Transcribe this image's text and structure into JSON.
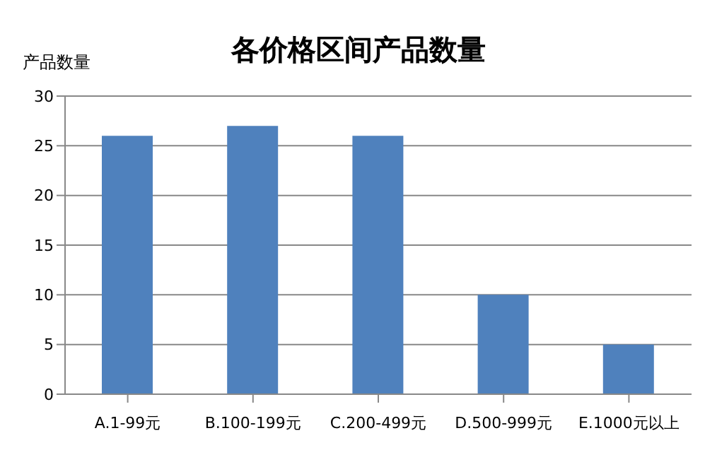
{
  "chart_data": {
    "type": "bar",
    "title": "各价格区间产品数量",
    "ylabel": "产品数量",
    "categories": [
      "A.1-99元",
      "B.100-199元",
      "C.200-499元",
      "D.500-999元",
      "E.1000元以上"
    ],
    "values": [
      26,
      27,
      26,
      10,
      5
    ],
    "color": "#4f81bd",
    "ylim": [
      0,
      30
    ],
    "yticks": [
      0,
      5,
      10,
      15,
      20,
      25,
      30
    ],
    "grid": "y",
    "legend": false
  }
}
